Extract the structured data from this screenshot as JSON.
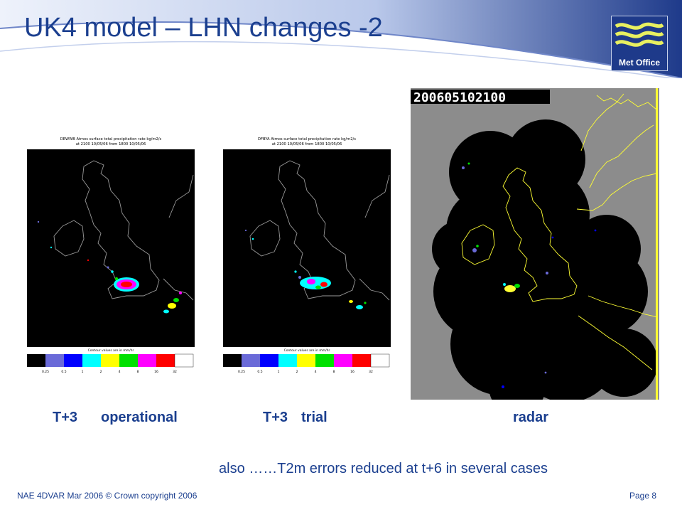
{
  "slide": {
    "title": "UK4 model – LHN changes -2",
    "logo_text": "Met Office",
    "footnote": "also ……T2m errors reduced at t+6 in several cases",
    "footer_left": "NAE 4DVAR Mar 2006 © Crown copyright 2006",
    "footer_right": "Page 8",
    "colors": {
      "title": "#1b3f8f",
      "banner_dark": "#1e3a8a",
      "radar_bg": "#8c8c8c",
      "coast": "#ffff33"
    }
  },
  "panels": [
    {
      "label_a": "T+3",
      "label_b": "operational",
      "header_line1": "DEWWB Atmos surface total precipitation rate kg/m2/s",
      "header_line2": "at 2100 10/05/06 from 1800 10/05/06",
      "contour_note": "Contour values are in mm/hr",
      "scale_values": [
        "0.25",
        "0.5",
        "1",
        "2",
        "4",
        "8",
        "16",
        "32"
      ]
    },
    {
      "label_a": "T+3",
      "label_b": "trial",
      "header_line1": "DFBYA Atmos surface total precipitation rate kg/m2/s",
      "header_line2": "at 2100 10/05/06 from 1800 10/05/06",
      "contour_note": "Contour values are in mm/hr",
      "scale_values": [
        "0.25",
        "0.5",
        "1",
        "2",
        "4",
        "8",
        "16",
        "32"
      ]
    }
  ],
  "radar": {
    "label": "radar",
    "timestamp": "200605102100"
  },
  "scale_colors": [
    "#000000",
    "#6a6ad8",
    "#0000ff",
    "#00ffff",
    "#ffff00",
    "#00e000",
    "#ff00ff",
    "#ff0000",
    "#ffffff"
  ]
}
